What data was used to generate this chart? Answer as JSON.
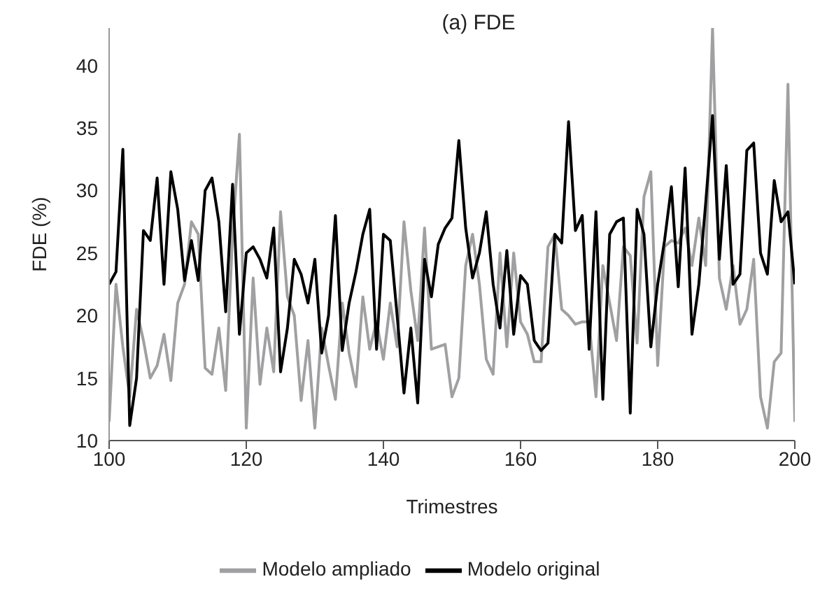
{
  "chart_data": {
    "type": "line",
    "title": "(a) FDE",
    "xlabel": "Trimestres",
    "ylabel": "FDE (%)",
    "x": [
      100,
      101,
      102,
      103,
      104,
      105,
      106,
      107,
      108,
      109,
      110,
      111,
      112,
      113,
      114,
      115,
      116,
      117,
      118,
      119,
      120,
      121,
      122,
      123,
      124,
      125,
      126,
      127,
      128,
      129,
      130,
      131,
      132,
      133,
      134,
      135,
      136,
      137,
      138,
      139,
      140,
      141,
      142,
      143,
      144,
      145,
      146,
      147,
      148,
      149,
      150,
      151,
      152,
      153,
      154,
      155,
      156,
      157,
      158,
      159,
      160,
      161,
      162,
      163,
      164,
      165,
      166,
      167,
      168,
      169,
      170,
      171,
      172,
      173,
      174,
      175,
      176,
      177,
      178,
      179,
      180,
      181,
      182,
      183,
      184,
      185,
      186,
      187,
      188,
      189,
      190,
      191,
      192,
      193,
      194,
      195,
      196,
      197,
      198,
      199,
      200
    ],
    "series": [
      {
        "name": "Modelo ampliado",
        "color": "#a0a0a2",
        "values": [
          11.5,
          22.5,
          17.5,
          13.5,
          20.5,
          18,
          15,
          16,
          18.5,
          14.8,
          21,
          22.5,
          27.5,
          26.5,
          15.8,
          15.3,
          19,
          14,
          26.5,
          34.5,
          11,
          23,
          14.5,
          19,
          15.5,
          28.3,
          21.5,
          20,
          13.2,
          18,
          11,
          19,
          16,
          13.3,
          21,
          17,
          14.3,
          21.5,
          17.3,
          19.5,
          16.5,
          21,
          17.5,
          27.5,
          22,
          18,
          27,
          17.3,
          17.5,
          17.7,
          13.5,
          15,
          24,
          26.5,
          22.5,
          16.5,
          15.3,
          25,
          17.5,
          25,
          19.5,
          18.5,
          16.3,
          16.3,
          25.5,
          26.5,
          20.5,
          20,
          19.3,
          19.5,
          19.5,
          13.5,
          24,
          21,
          18,
          25.5,
          24.8,
          17.8,
          29.5,
          31.5,
          16,
          25.5,
          26,
          25.8,
          27,
          24,
          27.8,
          24,
          43,
          23,
          20.5,
          24,
          19.3,
          20.5,
          24.5,
          13.5,
          11,
          16.3,
          17,
          38.5,
          11.5
        ]
      },
      {
        "name": "Modelo original",
        "color": "#000000",
        "values": [
          22.5,
          23.5,
          33.3,
          11.2,
          15,
          26.8,
          26,
          31,
          22.5,
          31.5,
          28.5,
          22.8,
          26,
          22.8,
          30,
          31,
          27.5,
          20.3,
          30.5,
          18.5,
          25,
          25.5,
          24.5,
          23,
          27,
          15.5,
          19,
          24.5,
          23.3,
          21,
          24.5,
          17,
          20,
          28,
          17.2,
          21,
          23.5,
          26.5,
          28.5,
          17.3,
          26.5,
          26,
          20,
          13.8,
          19,
          13,
          24.5,
          21.5,
          25.7,
          27,
          27.8,
          34,
          27,
          23,
          25,
          28.3,
          22.5,
          19,
          25.2,
          18.5,
          23.2,
          22.5,
          18,
          17.2,
          17.8,
          26.5,
          25.8,
          35.5,
          26.8,
          28,
          17.3,
          28.3,
          13.3,
          26.5,
          27.5,
          27.8,
          12.2,
          28.5,
          26.5,
          17.5,
          22.5,
          26,
          30.3,
          22.3,
          31.8,
          18.5,
          22.5,
          29,
          36,
          24.5,
          32,
          22.5,
          23.3,
          33.2,
          33.8,
          25,
          23.3,
          30.8,
          27.5,
          28.3,
          22.5
        ]
      }
    ],
    "xlim": [
      100,
      200
    ],
    "xticks": [
      100,
      120,
      140,
      160,
      180,
      200
    ],
    "ylim": [
      10,
      43
    ],
    "yticks": [
      10,
      15,
      20,
      25,
      30,
      35,
      40
    ],
    "grid": false,
    "legend": "bottom",
    "marker": "none",
    "line_style": "solid"
  }
}
